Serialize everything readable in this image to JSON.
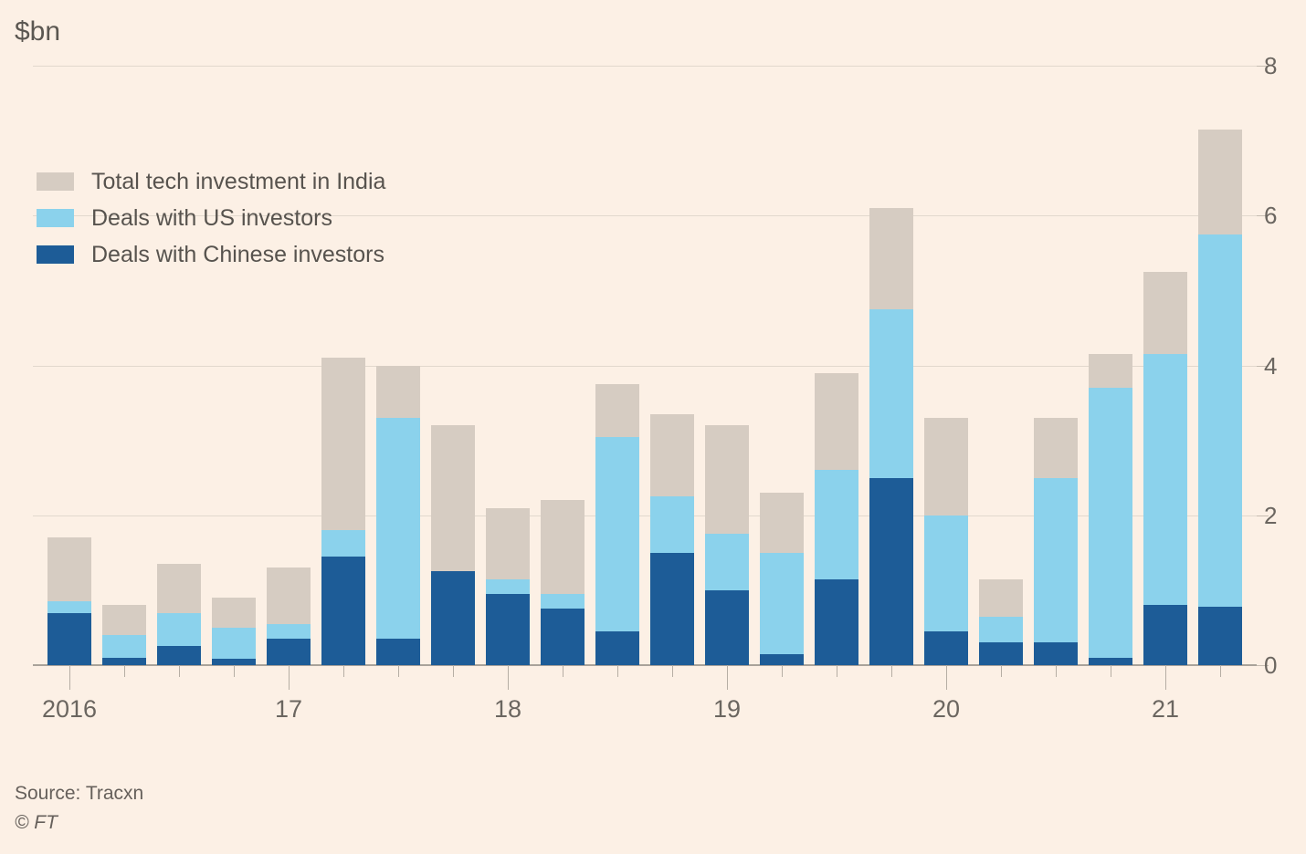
{
  "title": "$bn",
  "footer": {
    "source": "Source: Tracxn",
    "credit": "© FT"
  },
  "colors": {
    "background": "#FCF0E5",
    "gridline": "#E2D8CD",
    "axis": "#A9A29A",
    "text": "#6B6660"
  },
  "chart_data": {
    "type": "bar",
    "variant": "overlaid-bars-from-zero",
    "title": "$bn",
    "ylabel": "$bn",
    "ylim": [
      0,
      8
    ],
    "yticks": [
      0,
      2,
      4,
      6,
      8
    ],
    "grid": "horizontal",
    "legend_position": "top-left-inside",
    "categories": [
      "2016 Q1",
      "2016 Q2",
      "2016 Q3",
      "2016 Q4",
      "2017 Q1",
      "2017 Q2",
      "2017 Q3",
      "2017 Q4",
      "2018 Q1",
      "2018 Q2",
      "2018 Q3",
      "2018 Q4",
      "2019 Q1",
      "2019 Q2",
      "2019 Q3",
      "2019 Q4",
      "2020 Q1",
      "2020 Q2",
      "2020 Q3",
      "2020 Q4",
      "2021 Q1",
      "2021 Q2"
    ],
    "x_year_labels": [
      {
        "label": "2016",
        "bar_index": 0
      },
      {
        "label": "17",
        "bar_index": 4
      },
      {
        "label": "18",
        "bar_index": 8
      },
      {
        "label": "19",
        "bar_index": 12
      },
      {
        "label": "20",
        "bar_index": 16
      },
      {
        "label": "21",
        "bar_index": 20
      }
    ],
    "series": [
      {
        "name": "Total tech investment in India",
        "color": "#D6CCC2",
        "values": [
          1.7,
          0.8,
          1.35,
          0.9,
          1.3,
          4.1,
          4.0,
          3.2,
          2.1,
          2.2,
          3.75,
          3.35,
          3.2,
          2.3,
          3.9,
          6.1,
          3.3,
          1.15,
          3.3,
          4.15,
          5.25,
          7.15
        ]
      },
      {
        "name": "Deals with US investors",
        "color": "#8BD2EC",
        "values": [
          0.85,
          0.4,
          0.7,
          0.5,
          0.55,
          1.8,
          3.3,
          1.1,
          1.15,
          0.95,
          3.05,
          2.25,
          1.75,
          1.5,
          2.6,
          4.75,
          2.0,
          0.65,
          2.5,
          3.7,
          4.15,
          5.75
        ]
      },
      {
        "name": "Deals with Chinese investors",
        "color": "#1D5C97",
        "values": [
          0.7,
          0.1,
          0.25,
          0.08,
          0.35,
          1.45,
          0.35,
          1.25,
          0.95,
          0.75,
          0.45,
          1.5,
          1.0,
          0.15,
          1.15,
          2.5,
          0.45,
          0.3,
          0.3,
          0.1,
          0.8,
          0.78
        ]
      }
    ]
  }
}
